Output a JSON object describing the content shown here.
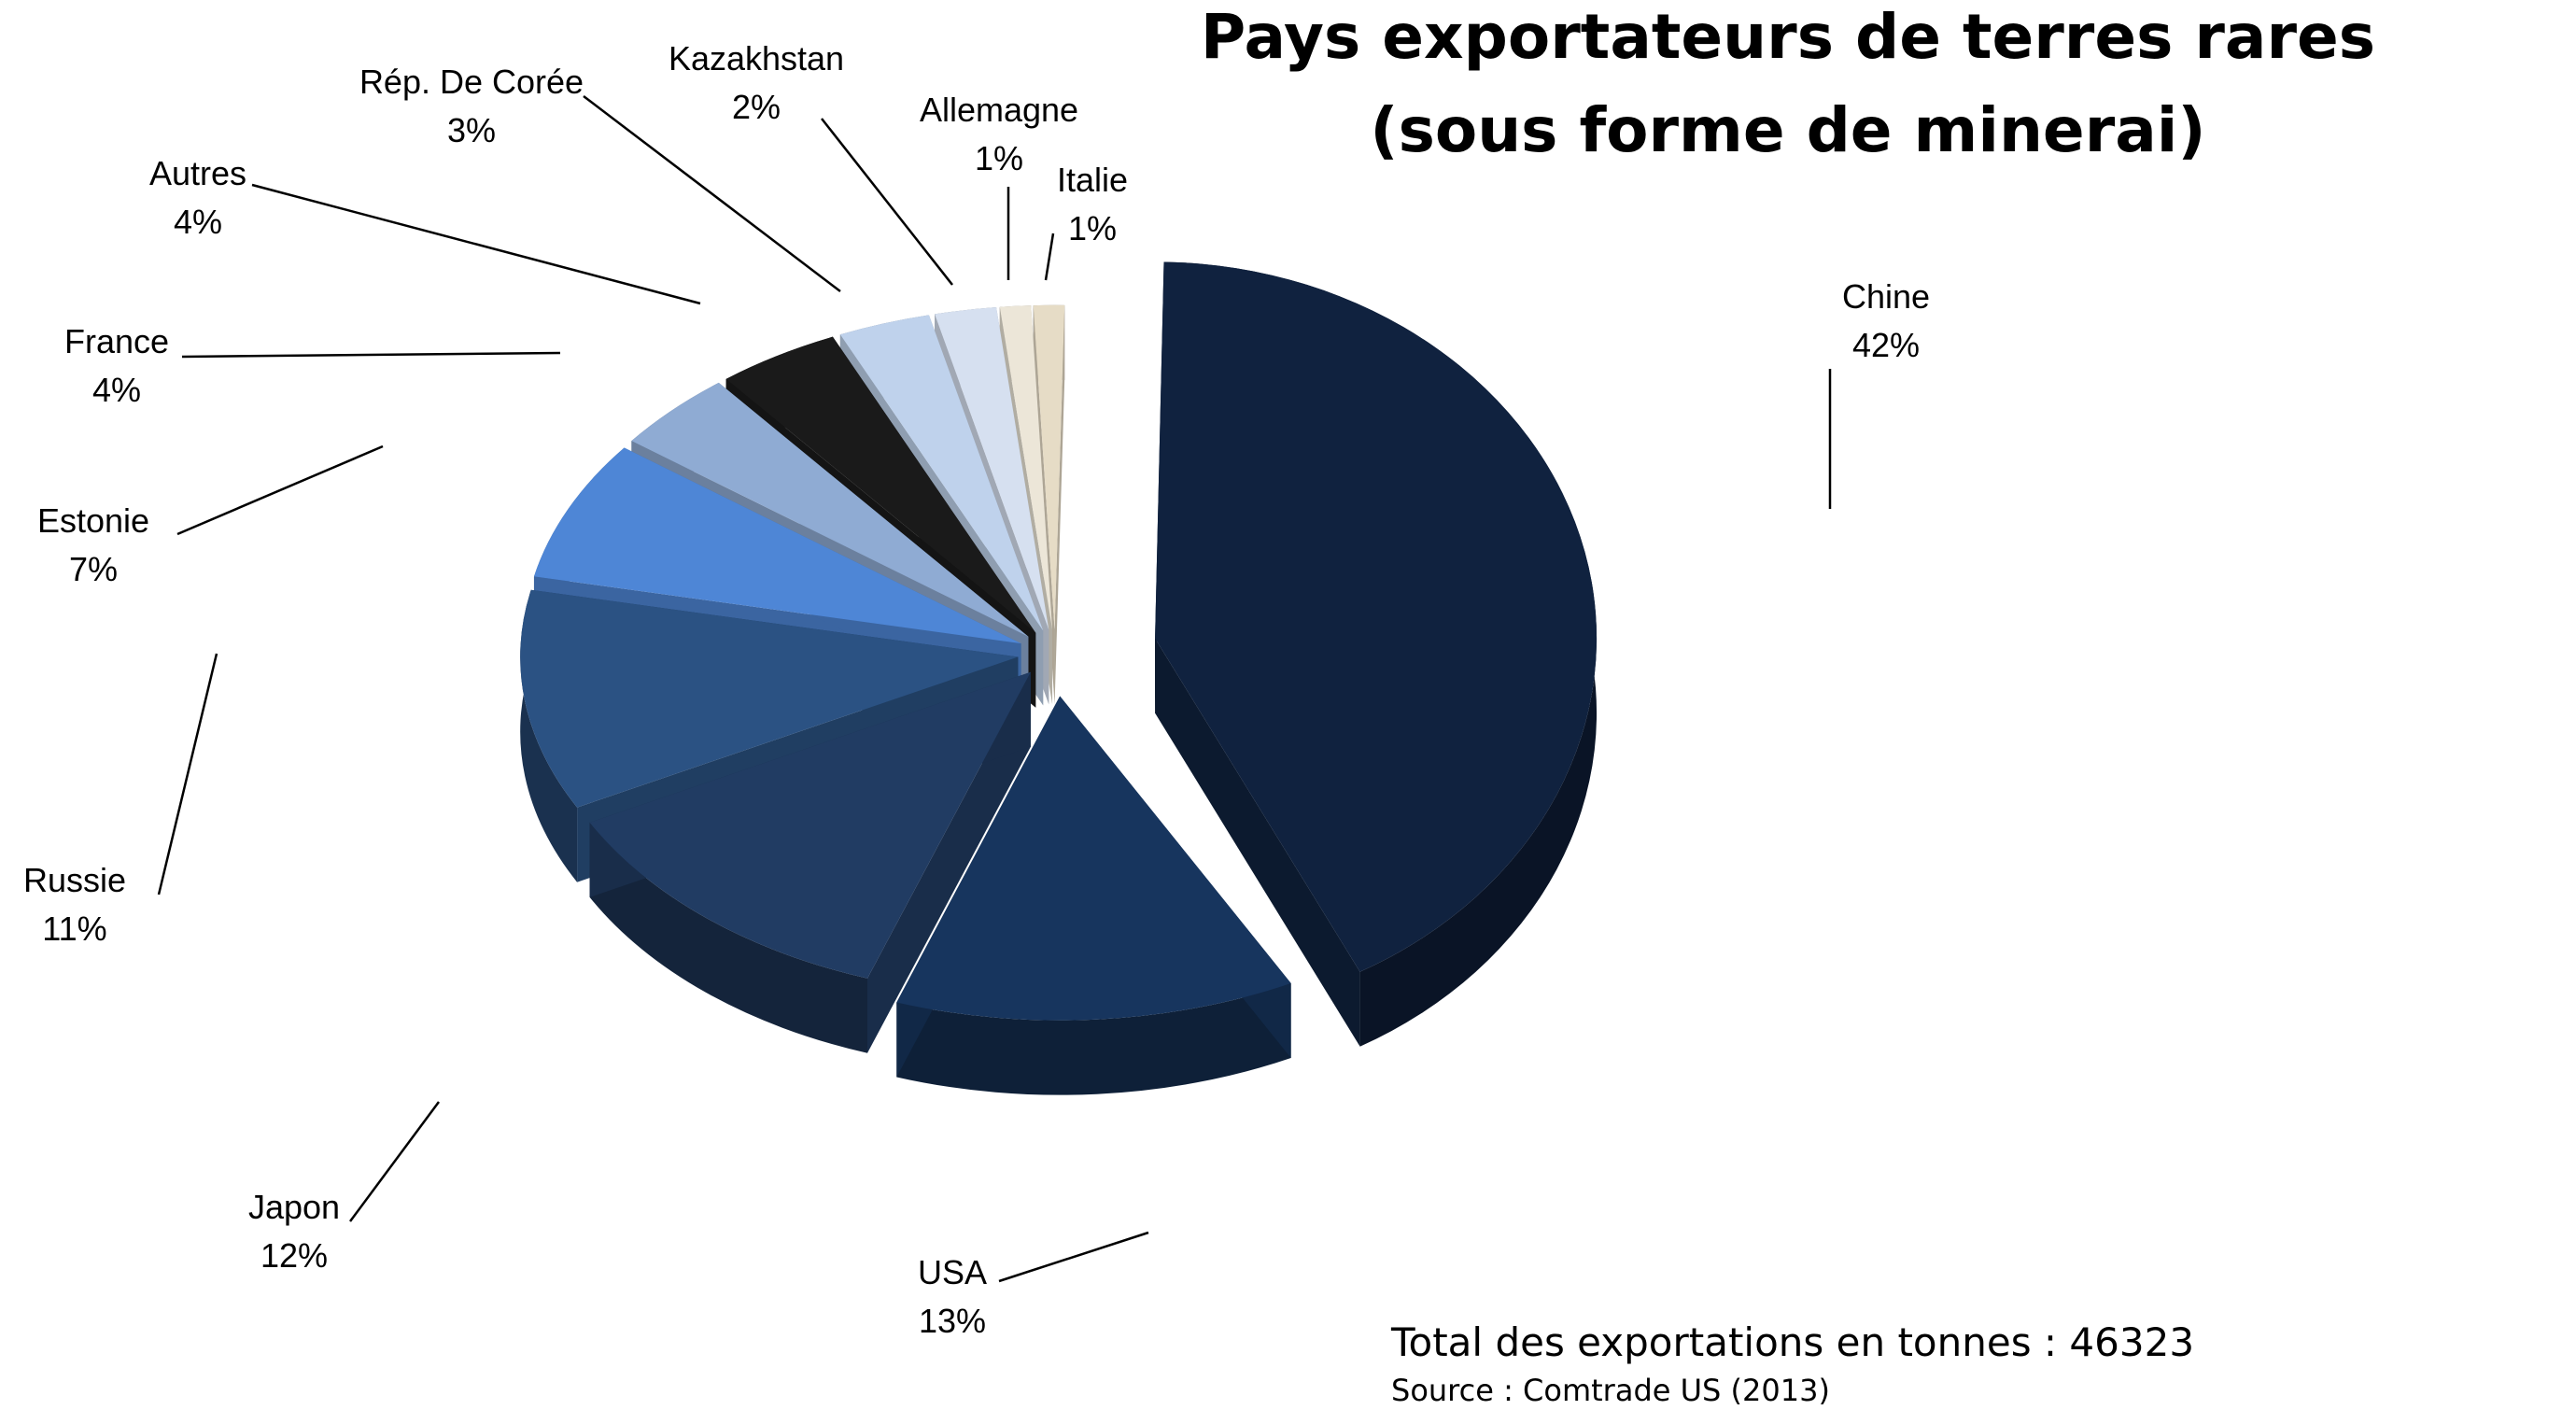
{
  "chart_data": {
    "type": "pie",
    "title_line1": "Pays exportateurs de terres rares",
    "title_line2": "(sous forme de minerai)",
    "total_text": "Total des exportations en tonnes : 46323",
    "source_text": "Source : Comtrade US (2013)",
    "slices": [
      {
        "name": "Chine",
        "value": 42,
        "label": "42%",
        "color": "#10223f"
      },
      {
        "name": "USA",
        "value": 13,
        "label": "13%",
        "color": "#17355e"
      },
      {
        "name": "Japon",
        "value": 12,
        "label": "12%",
        "color": "#213c63"
      },
      {
        "name": "Russie",
        "value": 11,
        "label": "11%",
        "color": "#2b5283"
      },
      {
        "name": "Estonie",
        "value": 7,
        "label": "7%",
        "color": "#4e86d6"
      },
      {
        "name": "France",
        "value": 4,
        "label": "4%",
        "color": "#8fabd3"
      },
      {
        "name": "Autres",
        "value": 4,
        "label": "4%",
        "color": "#1a1a1a"
      },
      {
        "name": "Rép. De Corée",
        "value": 3,
        "label": "3%",
        "color": "#bfd2ec"
      },
      {
        "name": "Kazakhstan",
        "value": 2,
        "label": "2%",
        "color": "#d6e0f0"
      },
      {
        "name": "Allemagne",
        "value": 1,
        "label": "1%",
        "color": "#ece6d8"
      },
      {
        "name": "Italie",
        "value": 1,
        "label": "1%",
        "color": "#e6dcc6"
      }
    ]
  }
}
